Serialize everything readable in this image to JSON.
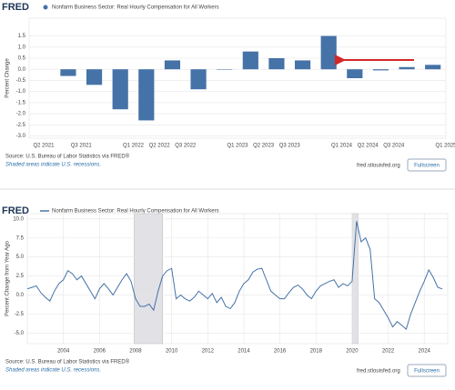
{
  "chart_data": [
    {
      "type": "bar",
      "logo": "FRED",
      "ylabel": "Percent Change",
      "categories": [
        null,
        "Q3 2021",
        null,
        "Q1 2022",
        "Q2 2022",
        "Q3 2022",
        null,
        "Q1 2023",
        "Q2 2023",
        "Q3 2023",
        null,
        "Q1 2024",
        "Q2 2024",
        "Q3 2024",
        null,
        "Q1 2025"
      ],
      "series": [
        {
          "name": "Nonfarm Business Sector: Real Hourly Compensation for All Workers",
          "color": "#4572a7",
          "values": [
            null,
            -0.3,
            -0.7,
            -1.8,
            -2.3,
            0.4,
            -0.9,
            0.0,
            0.8,
            0.5,
            0.4,
            1.5,
            -0.4,
            -0.05,
            0.1,
            0.2
          ]
        }
      ],
      "first_label": "Q2 2021",
      "ylim": [
        -3.1,
        2.3
      ],
      "yticks": [
        1.5,
        {
          "value": 1,
          "label": "1.0"
        },
        0.5,
        {
          "value": 0,
          "label": "0.0"
        },
        -0.5,
        {
          "value": -1,
          "label": "-1.0"
        },
        -1.5,
        {
          "value": -2,
          "label": "-2.0"
        },
        -2.5,
        {
          "value": -3,
          "label": "-3.0"
        }
      ],
      "grid": true,
      "source": "Source: U.S. Bureau of Labor Statistics via FRED®",
      "note": "Shaded areas indicate U.S. recessions.",
      "link": "fred.stlouisfed.org",
      "button": "Fullscreen"
    },
    {
      "type": "line",
      "logo": "FRED",
      "ylabel": "Percent Change from Year Ago",
      "x": [
        2002,
        2002.25,
        2002.5,
        2002.75,
        2003,
        2003.25,
        2003.5,
        2003.75,
        2004,
        2004.25,
        2004.5,
        2004.75,
        2005,
        2005.25,
        2005.5,
        2005.75,
        2006,
        2006.25,
        2006.5,
        2006.75,
        2007,
        2007.25,
        2007.5,
        2007.75,
        2008,
        2008.25,
        2008.5,
        2008.75,
        2009,
        2009.25,
        2009.5,
        2009.75,
        2010,
        2010.25,
        2010.5,
        2010.75,
        2011,
        2011.25,
        2011.5,
        2011.75,
        2012,
        2012.25,
        2012.5,
        2012.75,
        2013,
        2013.25,
        2013.5,
        2013.75,
        2014,
        2014.25,
        2014.5,
        2014.75,
        2015,
        2015.25,
        2015.5,
        2015.75,
        2016,
        2016.25,
        2016.5,
        2016.75,
        2017,
        2017.25,
        2017.5,
        2017.75,
        2018,
        2018.25,
        2018.5,
        2018.75,
        2019,
        2019.25,
        2019.5,
        2019.75,
        2020,
        2020.25,
        2020.5,
        2020.75,
        2021,
        2021.25,
        2021.5,
        2021.75,
        2022,
        2022.25,
        2022.5,
        2022.75,
        2023,
        2023.25,
        2023.5,
        2023.75,
        2024,
        2024.25,
        2024.5,
        2024.75,
        2025
      ],
      "series": [
        {
          "name": "Nonfarm Business Sector: Real Hourly Compensation for All Workers",
          "color": "#4572a7",
          "values": [
            0.8,
            1.0,
            1.2,
            0.3,
            -0.3,
            -0.8,
            0.5,
            1.5,
            2.0,
            3.2,
            2.8,
            2.0,
            2.5,
            1.5,
            0.5,
            -0.5,
            0.8,
            1.5,
            0.8,
            0.0,
            1.0,
            2.0,
            2.8,
            1.8,
            -0.5,
            -1.5,
            -1.5,
            -1.2,
            -2.0,
            0.5,
            2.5,
            3.2,
            3.5,
            -0.5,
            0.0,
            -0.5,
            -0.8,
            -0.3,
            0.5,
            0.0,
            -0.5,
            0.2,
            -1.0,
            -0.3,
            -1.5,
            -1.8,
            -1.0,
            0.5,
            1.5,
            2.0,
            3.0,
            3.4,
            3.5,
            2.0,
            0.5,
            0.0,
            -0.5,
            -0.5,
            0.3,
            1.0,
            1.3,
            0.8,
            0.0,
            -0.5,
            0.5,
            1.2,
            1.5,
            1.8,
            2.0,
            1.0,
            1.5,
            1.2,
            1.8,
            9.7,
            7.0,
            7.5,
            6.0,
            -0.5,
            -1.0,
            -2.0,
            -3.0,
            -4.2,
            -3.5,
            -4.0,
            -4.5,
            -2.5,
            -1.0,
            0.5,
            1.8,
            3.3,
            2.3,
            1.0,
            0.8
          ]
        }
      ],
      "recessions": [
        [
          2007.92,
          2009.5
        ],
        [
          2020.0,
          2020.33
        ]
      ],
      "xlim": [
        2002,
        2025.3
      ],
      "xticks": [
        2004,
        2006,
        2008,
        2010,
        2012,
        2014,
        2016,
        2018,
        2020,
        2022,
        2024
      ],
      "ylim": [
        -6.4,
        10.7
      ],
      "yticks": [
        {
          "value": 10,
          "label": "10.0"
        },
        7.5,
        {
          "value": 5,
          "label": "5.0"
        },
        2.5,
        {
          "value": 0,
          "label": "0.0"
        },
        -2.5,
        {
          "value": -5,
          "label": "-5.0"
        }
      ],
      "grid": true,
      "source": "Source: U.S. Bureau of Labor Statistics via FRED®",
      "note": "Shaded areas indicate U.S. recessions.",
      "link": "fred.stlouisfed.org",
      "button": "Fullscreen"
    }
  ]
}
